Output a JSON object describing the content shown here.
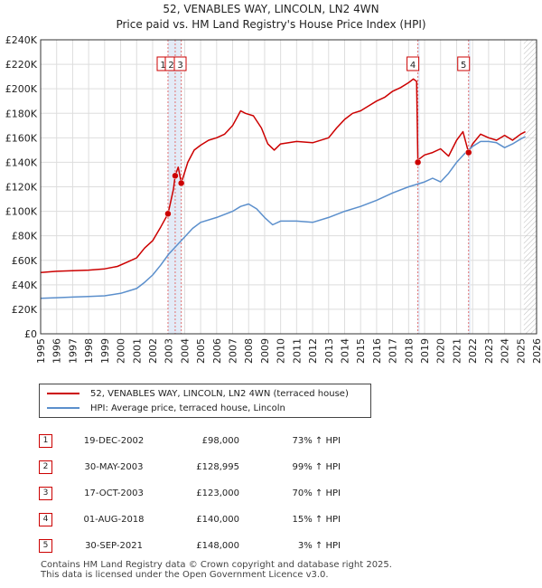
{
  "title": "52, VENABLES WAY, LINCOLN, LN2 4WN",
  "subtitle": "Price paid vs. HM Land Registry's House Price Index (HPI)",
  "legend": {
    "property": "52, VENABLES WAY, LINCOLN, LN2 4WN (terraced house)",
    "hpi": "HPI: Average price, terraced house, Lincoln"
  },
  "colors": {
    "property": "#cc0000",
    "hpi": "#5b8fcc",
    "grid": "#dddddd",
    "shade": "#e3ebf7"
  },
  "sales": [
    {
      "num": "1",
      "date": "19-DEC-2002",
      "price": "£98,000",
      "hpi_change": "73% ↑ HPI"
    },
    {
      "num": "2",
      "date": "30-MAY-2003",
      "price": "£128,995",
      "hpi_change": "99% ↑ HPI"
    },
    {
      "num": "3",
      "date": "17-OCT-2003",
      "price": "£123,000",
      "hpi_change": "70% ↑ HPI"
    },
    {
      "num": "4",
      "date": "01-AUG-2018",
      "price": "£140,000",
      "hpi_change": "15% ↑ HPI"
    },
    {
      "num": "5",
      "date": "30-SEP-2021",
      "price": "£148,000",
      "hpi_change": "3% ↑ HPI"
    }
  ],
  "footer": {
    "line1": "Contains HM Land Registry data © Crown copyright and database right 2025.",
    "line2": "This data is licensed under the Open Government Licence v3.0."
  },
  "chart_data": {
    "type": "line",
    "title": "52, VENABLES WAY, LINCOLN, LN2 4WN",
    "subtitle": "Price paid vs. HM Land Registry's House Price Index (HPI)",
    "xlim": [
      1995,
      2026
    ],
    "ylim": [
      0,
      240000
    ],
    "x_ticks": [
      "1995",
      "1996",
      "1997",
      "1998",
      "1999",
      "2000",
      "2001",
      "2002",
      "2003",
      "2004",
      "2005",
      "2006",
      "2007",
      "2008",
      "2009",
      "2010",
      "2011",
      "2012",
      "2013",
      "2014",
      "2015",
      "2016",
      "2017",
      "2018",
      "2019",
      "2020",
      "2021",
      "2022",
      "2023",
      "2024",
      "2025",
      "2026"
    ],
    "y_ticks": [
      {
        "v": 0,
        "label": "£0"
      },
      {
        "v": 20000,
        "label": "£20K"
      },
      {
        "v": 40000,
        "label": "£40K"
      },
      {
        "v": 60000,
        "label": "£60K"
      },
      {
        "v": 80000,
        "label": "£80K"
      },
      {
        "v": 100000,
        "label": "£100K"
      },
      {
        "v": 120000,
        "label": "£120K"
      },
      {
        "v": 140000,
        "label": "£140K"
      },
      {
        "v": 160000,
        "label": "£160K"
      },
      {
        "v": 180000,
        "label": "£180K"
      },
      {
        "v": 200000,
        "label": "£200K"
      },
      {
        "v": 220000,
        "label": "£220K"
      },
      {
        "v": 240000,
        "label": "£240K"
      }
    ],
    "hatched_from": 2025.2,
    "series": [
      {
        "name": "52, VENABLES WAY, LINCOLN, LN2 4WN (terraced house)",
        "color": "#cc0000",
        "x": [
          1995,
          1996,
          1997,
          1998,
          1999,
          1999.8,
          2000.5,
          2001,
          2001.5,
          2002,
          2002.5,
          2002.96,
          2003.3,
          2003.41,
          2003.6,
          2003.79,
          2004.2,
          2004.6,
          2005,
          2005.5,
          2006,
          2006.5,
          2007,
          2007.5,
          2007.8,
          2008.3,
          2008.8,
          2009.2,
          2009.6,
          2010,
          2011,
          2012,
          2013,
          2013.5,
          2014,
          2014.5,
          2015,
          2015.5,
          2016,
          2016.5,
          2017,
          2017.5,
          2018,
          2018.3,
          2018.5,
          2018.58,
          2018.6,
          2019,
          2019.5,
          2020,
          2020.5,
          2021,
          2021.4,
          2021.75,
          2022,
          2022.5,
          2023,
          2023.5,
          2024,
          2024.5,
          2025,
          2025.3
        ],
        "y": [
          50000,
          51000,
          51500,
          52000,
          53000,
          55000,
          59000,
          62000,
          70000,
          76000,
          87000,
          98000,
          118000,
          128995,
          136000,
          123000,
          140000,
          150000,
          154000,
          158000,
          160000,
          163000,
          170000,
          182000,
          180000,
          178000,
          168000,
          155000,
          150000,
          155000,
          157000,
          156000,
          160000,
          168000,
          175000,
          180000,
          182000,
          186000,
          190000,
          193000,
          198000,
          201000,
          205000,
          208000,
          206000,
          140000,
          142000,
          146000,
          148000,
          151000,
          145000,
          158000,
          165000,
          148000,
          155000,
          163000,
          160000,
          158000,
          162000,
          158000,
          163000,
          165000
        ]
      },
      {
        "name": "HPI: Average price, terraced house, Lincoln",
        "color": "#5b8fcc",
        "x": [
          1995,
          1996,
          1997,
          1998,
          1999,
          2000,
          2000.5,
          2001,
          2001.5,
          2002,
          2002.5,
          2003,
          2003.5,
          2004,
          2004.5,
          2005,
          2006,
          2007,
          2007.5,
          2008,
          2008.5,
          2009,
          2009.5,
          2010,
          2011,
          2012,
          2013,
          2014,
          2015,
          2016,
          2017,
          2018,
          2019,
          2019.5,
          2020,
          2020.5,
          2021,
          2021.5,
          2022,
          2022.5,
          2023,
          2023.5,
          2024,
          2024.5,
          2025,
          2025.3
        ],
        "y": [
          29000,
          29500,
          30000,
          30500,
          31000,
          33000,
          35000,
          37000,
          42000,
          48000,
          56000,
          65000,
          72000,
          79000,
          86000,
          91000,
          95000,
          100000,
          104000,
          106000,
          102000,
          95000,
          89000,
          92000,
          92000,
          91000,
          95000,
          100000,
          104000,
          109000,
          115000,
          120000,
          124000,
          127000,
          124000,
          131000,
          140000,
          147000,
          153000,
          157000,
          157000,
          156000,
          152000,
          155000,
          159000,
          161000
        ]
      }
    ],
    "sales_points": [
      {
        "label": "1",
        "x": 2002.96,
        "y": 98000
      },
      {
        "label": "2",
        "x": 2003.41,
        "y": 128995
      },
      {
        "label": "3",
        "x": 2003.79,
        "y": 123000
      },
      {
        "label": "4",
        "x": 2018.58,
        "y": 140000
      },
      {
        "label": "5",
        "x": 2021.75,
        "y": 148000
      }
    ]
  }
}
